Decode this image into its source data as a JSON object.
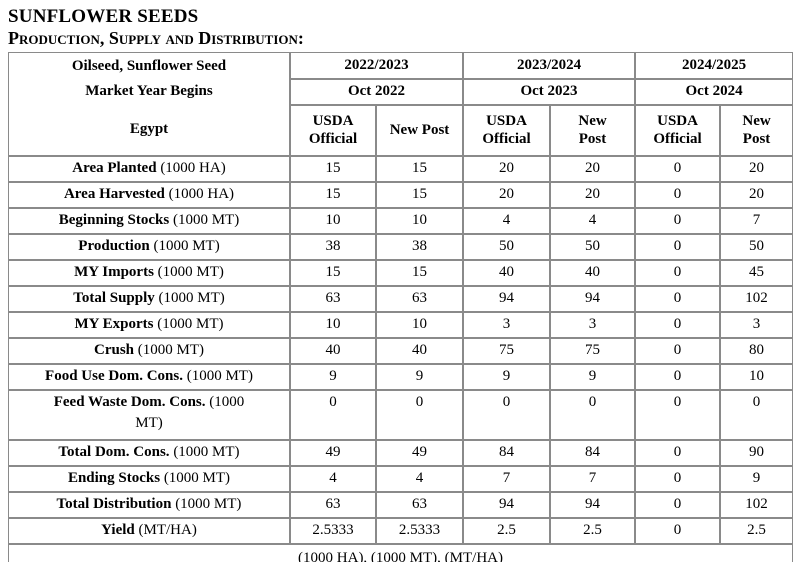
{
  "page_title": {
    "line1": "SUNFLOWER SEEDS",
    "line2": "Production, Supply and Distribution:"
  },
  "table": {
    "corner": {
      "line1": "Oilseed, Sunflower Seed",
      "line2": "Market Year Begins",
      "line3": "Egypt"
    },
    "year_groups": [
      {
        "year": "2022/2023",
        "begins": "Oct 2022",
        "columns": [
          "USDA\nOfficial",
          "New Post"
        ]
      },
      {
        "year": "2023/2024",
        "begins": "Oct 2023",
        "columns": [
          "USDA\nOfficial",
          "New\nPost"
        ]
      },
      {
        "year": "2024/2025",
        "begins": "Oct 2024",
        "columns": [
          "USDA\nOfficial",
          "New\nPost"
        ]
      }
    ],
    "rows": [
      {
        "label": "Area Planted",
        "unit": "(1000 HA)",
        "values": [
          "15",
          "15",
          "20",
          "20",
          "0",
          "20"
        ]
      },
      {
        "label": "Area Harvested",
        "unit": "(1000 HA)",
        "values": [
          "15",
          "15",
          "20",
          "20",
          "0",
          "20"
        ]
      },
      {
        "label": "Beginning Stocks",
        "unit": "(1000 MT)",
        "values": [
          "10",
          "10",
          "4",
          "4",
          "0",
          "7"
        ]
      },
      {
        "label": "Production",
        "unit": "(1000 MT)",
        "values": [
          "38",
          "38",
          "50",
          "50",
          "0",
          "50"
        ]
      },
      {
        "label": "MY Imports",
        "unit": "(1000 MT)",
        "values": [
          "15",
          "15",
          "40",
          "40",
          "0",
          "45"
        ]
      },
      {
        "label": "Total Supply",
        "unit": "(1000 MT)",
        "values": [
          "63",
          "63",
          "94",
          "94",
          "0",
          "102"
        ]
      },
      {
        "label": "MY Exports",
        "unit": "(1000 MT)",
        "values": [
          "10",
          "10",
          "3",
          "3",
          "0",
          "3"
        ]
      },
      {
        "label": "Crush",
        "unit": "(1000 MT)",
        "values": [
          "40",
          "40",
          "75",
          "75",
          "0",
          "80"
        ]
      },
      {
        "label": "Food Use Dom. Cons.",
        "unit": "(1000 MT)",
        "values": [
          "9",
          "9",
          "9",
          "9",
          "0",
          "10"
        ]
      },
      {
        "label": "Feed Waste Dom. Cons.",
        "unit": "(1000 MT)",
        "values": [
          "0",
          "0",
          "0",
          "0",
          "0",
          "0"
        ],
        "wrap": true
      },
      {
        "label": "Total Dom. Cons.",
        "unit": "(1000 MT)",
        "values": [
          "49",
          "49",
          "84",
          "84",
          "0",
          "90"
        ]
      },
      {
        "label": "Ending Stocks",
        "unit": "(1000 MT)",
        "values": [
          "4",
          "4",
          "7",
          "7",
          "0",
          "9"
        ]
      },
      {
        "label": "Total Distribution",
        "unit": "(1000 MT)",
        "values": [
          "63",
          "63",
          "94",
          "94",
          "0",
          "102"
        ]
      },
      {
        "label": "Yield",
        "unit": "(MT/HA)",
        "values": [
          "2.5333",
          "2.5333",
          "2.5",
          "2.5",
          "0",
          "2.5"
        ]
      }
    ],
    "footer": "(1000 HA), (1000 MT), (MT/HA)"
  },
  "colors": {
    "border": "#8a8a8a",
    "text": "#000000",
    "background": "#ffffff"
  }
}
